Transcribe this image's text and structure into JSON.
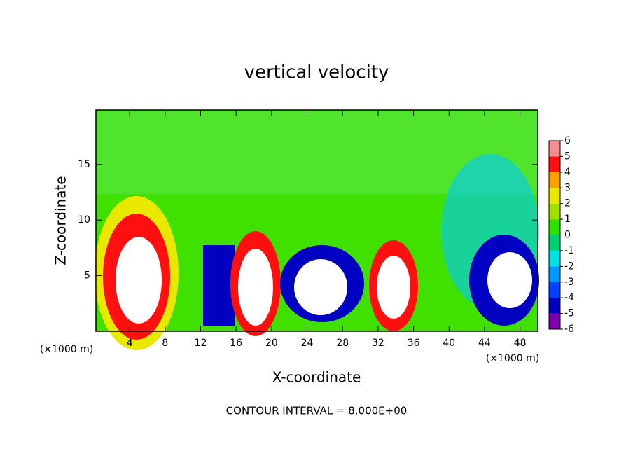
{
  "chart_data": {
    "type": "contour",
    "title": "vertical velocity",
    "x_label": "X-coordinate",
    "y_label": "Z-coordinate",
    "x_unit": "(×1000 m)",
    "y_unit": "(×1000 m)",
    "footnote": "CONTOUR INTERVAL = 8.000E+00",
    "xlim": [
      0.2,
      50
    ],
    "xticks": [
      4,
      8,
      12,
      16,
      20,
      24,
      28,
      32,
      36,
      40,
      44,
      48
    ],
    "ylim": [
      0,
      19.9
    ],
    "yticks": [
      5,
      10,
      15
    ],
    "colorbar": {
      "ticks": [
        -6,
        -5,
        -4,
        -3,
        -2,
        -1,
        0,
        1,
        2,
        3,
        4,
        5,
        6
      ],
      "colors": [
        "#7a00a8",
        "#0000c0",
        "#0040ff",
        "#0098ff",
        "#00e0e0",
        "#00d070",
        "#30e000",
        "#a0e000",
        "#e8e800",
        "#ffa000",
        "#ff1010",
        "#f09090"
      ]
    }
  }
}
